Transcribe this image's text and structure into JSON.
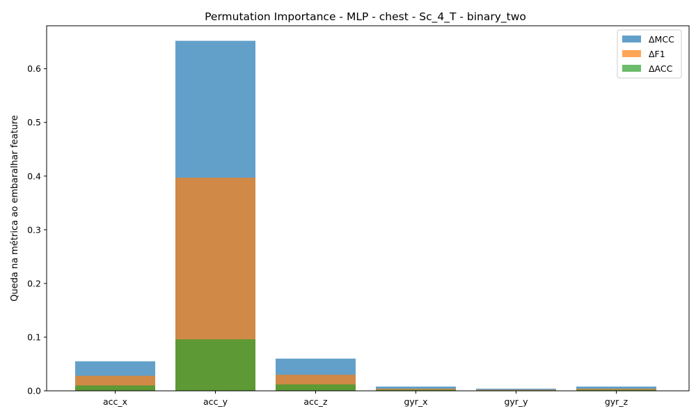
{
  "chart_data": {
    "type": "bar",
    "title": "Permutation Importance - MLP - chest - Sc_4_T - binary_two",
    "xlabel": "",
    "ylabel": "Queda na métrica ao embaralhar feature",
    "categories": [
      "acc_x",
      "acc_y",
      "acc_z",
      "gyr_x",
      "gyr_y",
      "gyr_z"
    ],
    "ylim": [
      0,
      0.68
    ],
    "yticks": [
      "0.0",
      "0.1",
      "0.2",
      "0.3",
      "0.4",
      "0.5",
      "0.6"
    ],
    "grid": false,
    "legend_position": "top-right",
    "overlay": true,
    "series": [
      {
        "name": "ΔMCC",
        "color": "#1f77b4",
        "opacity": 0.7,
        "values": [
          0.055,
          0.652,
          0.06,
          0.008,
          0.004,
          0.008
        ]
      },
      {
        "name": "ΔF1",
        "color": "#ff7f0e",
        "opacity": 0.7,
        "values": [
          0.028,
          0.397,
          0.03,
          0.004,
          0.002,
          0.004
        ]
      },
      {
        "name": "ΔACC",
        "color": "#2ca02c",
        "opacity": 0.7,
        "values": [
          0.01,
          0.096,
          0.012,
          0.002,
          0.001,
          0.002
        ]
      }
    ]
  }
}
